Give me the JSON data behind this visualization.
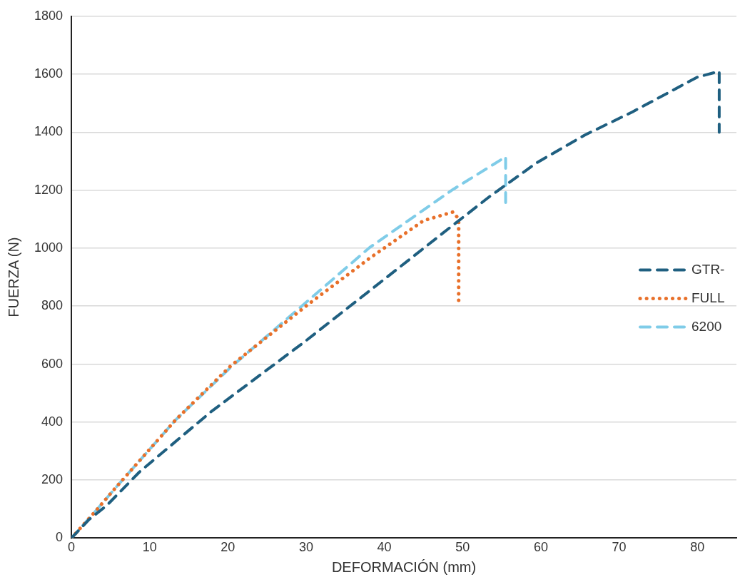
{
  "chart_data": {
    "type": "line",
    "xlabel": "DEFORMACIÓN (mm)",
    "ylabel": "FUERZA (N)",
    "xlim": [
      0,
      85
    ],
    "xticks": [
      0,
      10,
      20,
      30,
      40,
      50,
      60,
      70,
      80
    ],
    "ylim": [
      0,
      1800
    ],
    "yticks": [
      0,
      200,
      400,
      600,
      800,
      1000,
      1200,
      1400,
      1600,
      1800
    ],
    "grid": "y",
    "legend": "right",
    "marker": "none",
    "series": [
      {
        "name": "GTR-",
        "color": "#1f5f80",
        "line_style": "dashed",
        "x": [
          0,
          2.3,
          4.5,
          8.7,
          17.9,
          29.8,
          40,
          48.8,
          53.4,
          59.5,
          65.6,
          71.7,
          80,
          82.8,
          82.8
        ],
        "values": [
          0,
          65,
          112,
          228,
          437,
          677,
          893,
          1080,
          1177,
          1295,
          1390,
          1470,
          1590,
          1610,
          1400
        ]
      },
      {
        "name": "FULL",
        "color": "#e8702a",
        "line_style": "dotted",
        "x": [
          0,
          2.9,
          5.7,
          10,
          13.3,
          20.4,
          30.3,
          38.1,
          45,
          48.8,
          49.5,
          49.5
        ],
        "values": [
          0,
          87,
          175,
          306,
          407,
          595,
          807,
          965,
          1095,
          1125,
          1100,
          810
        ]
      },
      {
        "name": "6200",
        "color": "#7fcce8",
        "line_style": "dashed",
        "x": [
          0,
          2.9,
          5.7,
          10,
          13.3,
          20.4,
          30.3,
          38.1,
          48.8,
          55.5,
          55.5
        ],
        "values": [
          0,
          87,
          175,
          306,
          407,
          590,
          820,
          1002,
          1203,
          1315,
          1150
        ]
      }
    ]
  }
}
